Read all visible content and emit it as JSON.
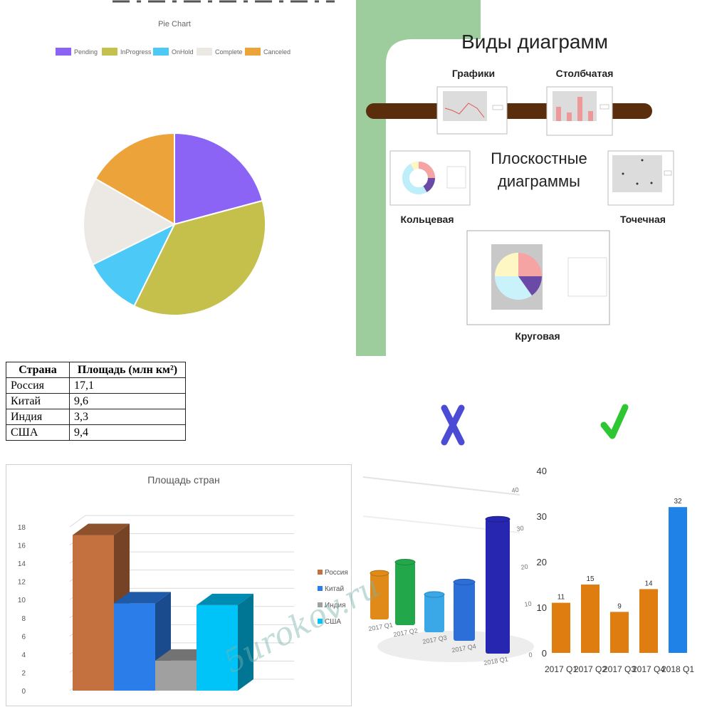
{
  "colors": {
    "pending": "#8b63f5",
    "inprogress": "#c4c04b",
    "onhold": "#4cc9f7",
    "complete": "#ece9e5",
    "cancelled": "#eca43a",
    "russia": "#c4703f",
    "china": "#2b7de9",
    "india": "#a0a0a0",
    "usa": "#00c3f7",
    "orange": "#e07d10",
    "green_frame": "#9dcd9d",
    "brown_bar": "#5a2d0c",
    "cross": "#4b4bd6",
    "check": "#2ec633"
  },
  "chart_data": [
    {
      "type": "pie",
      "title": "Pie Chart",
      "legend_placement": "top",
      "categories": [
        "Pending",
        "InProgress",
        "OnHold",
        "Complete",
        "Canceled"
      ],
      "values": [
        20,
        35,
        10,
        15,
        16
      ]
    },
    {
      "type": "table",
      "columns": [
        "Страна",
        "Площадь (млн км²)"
      ],
      "rows": [
        [
          "Россия",
          "17,1"
        ],
        [
          "Китай",
          "9,6"
        ],
        [
          "Индия",
          "3,3"
        ],
        [
          "США",
          "9,4"
        ]
      ]
    },
    {
      "type": "bar",
      "title": "Площадь стран",
      "legend_placement": "right",
      "categories": [
        "Россия",
        "Китай",
        "Индия",
        "США"
      ],
      "values": [
        17.1,
        9.6,
        3.3,
        9.4
      ],
      "ylim": [
        0,
        18
      ],
      "yticks": [
        "0",
        "2",
        "4",
        "6",
        "8",
        "10",
        "12",
        "14",
        "16",
        "18"
      ],
      "grid": true
    },
    {
      "type": "bar",
      "categories": [
        "2017 Q1",
        "2017 Q2",
        "2017 Q3",
        "2017 Q4",
        "2018 Q1"
      ],
      "values": [
        11,
        15,
        9,
        14,
        32
      ],
      "ylim": [
        0,
        40
      ],
      "yticks": [
        "0",
        "10",
        "20",
        "30",
        "40"
      ],
      "labels": [
        "",
        "",
        "",
        "",
        ""
      ]
    },
    {
      "type": "bar",
      "categories": [
        "2017 Q1",
        "2017 Q2",
        "2017 Q3",
        "2017 Q4",
        "2018 Q1"
      ],
      "values": [
        11,
        15,
        9,
        14,
        32
      ],
      "ylim": [
        0,
        40
      ],
      "yticks": [
        "0",
        "10",
        "20",
        "30",
        "40"
      ],
      "grid": false
    }
  ],
  "infographic": {
    "title": "Виды диаграмм",
    "center_text_1": "Плоскостные",
    "center_text_2": "диаграммы",
    "items": [
      "Графики",
      "Столбчатая",
      "Кольцевая",
      "Точечная",
      "Круговая"
    ]
  },
  "watermark": "5urokov.ru"
}
